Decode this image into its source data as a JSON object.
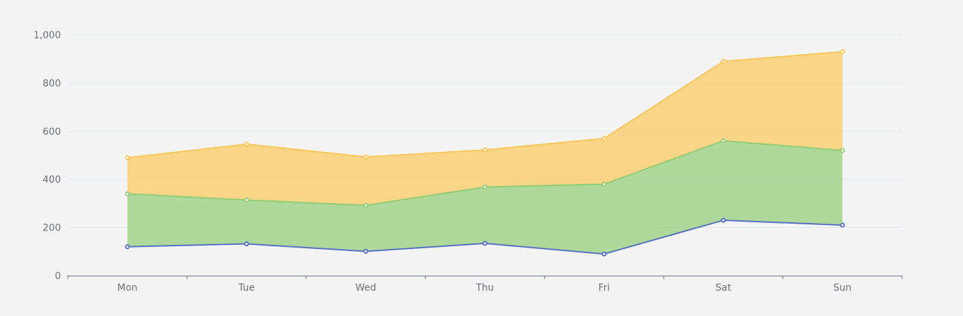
{
  "chart_data": {
    "type": "area",
    "stacked": true,
    "title": "",
    "xlabel": "",
    "ylabel": "",
    "categories": [
      "Mon",
      "Tue",
      "Wed",
      "Thu",
      "Fri",
      "Sat",
      "Sun"
    ],
    "ylim": [
      0,
      1000
    ],
    "yticks": [
      0,
      200,
      400,
      600,
      800,
      1000
    ],
    "ytick_labels": [
      "0",
      "200",
      "400",
      "600",
      "800",
      "1,000"
    ],
    "grid": true,
    "legend": "none",
    "series": [
      {
        "values": [
          120,
          132,
          101,
          134,
          90,
          230,
          210
        ],
        "color": "#5470c6",
        "area": false
      },
      {
        "values": [
          220,
          182,
          191,
          234,
          290,
          330,
          310
        ],
        "color": "#91cc75",
        "area": true
      },
      {
        "values": [
          150,
          232,
          201,
          154,
          190,
          330,
          410
        ],
        "color": "#fac858",
        "area": true
      }
    ]
  }
}
